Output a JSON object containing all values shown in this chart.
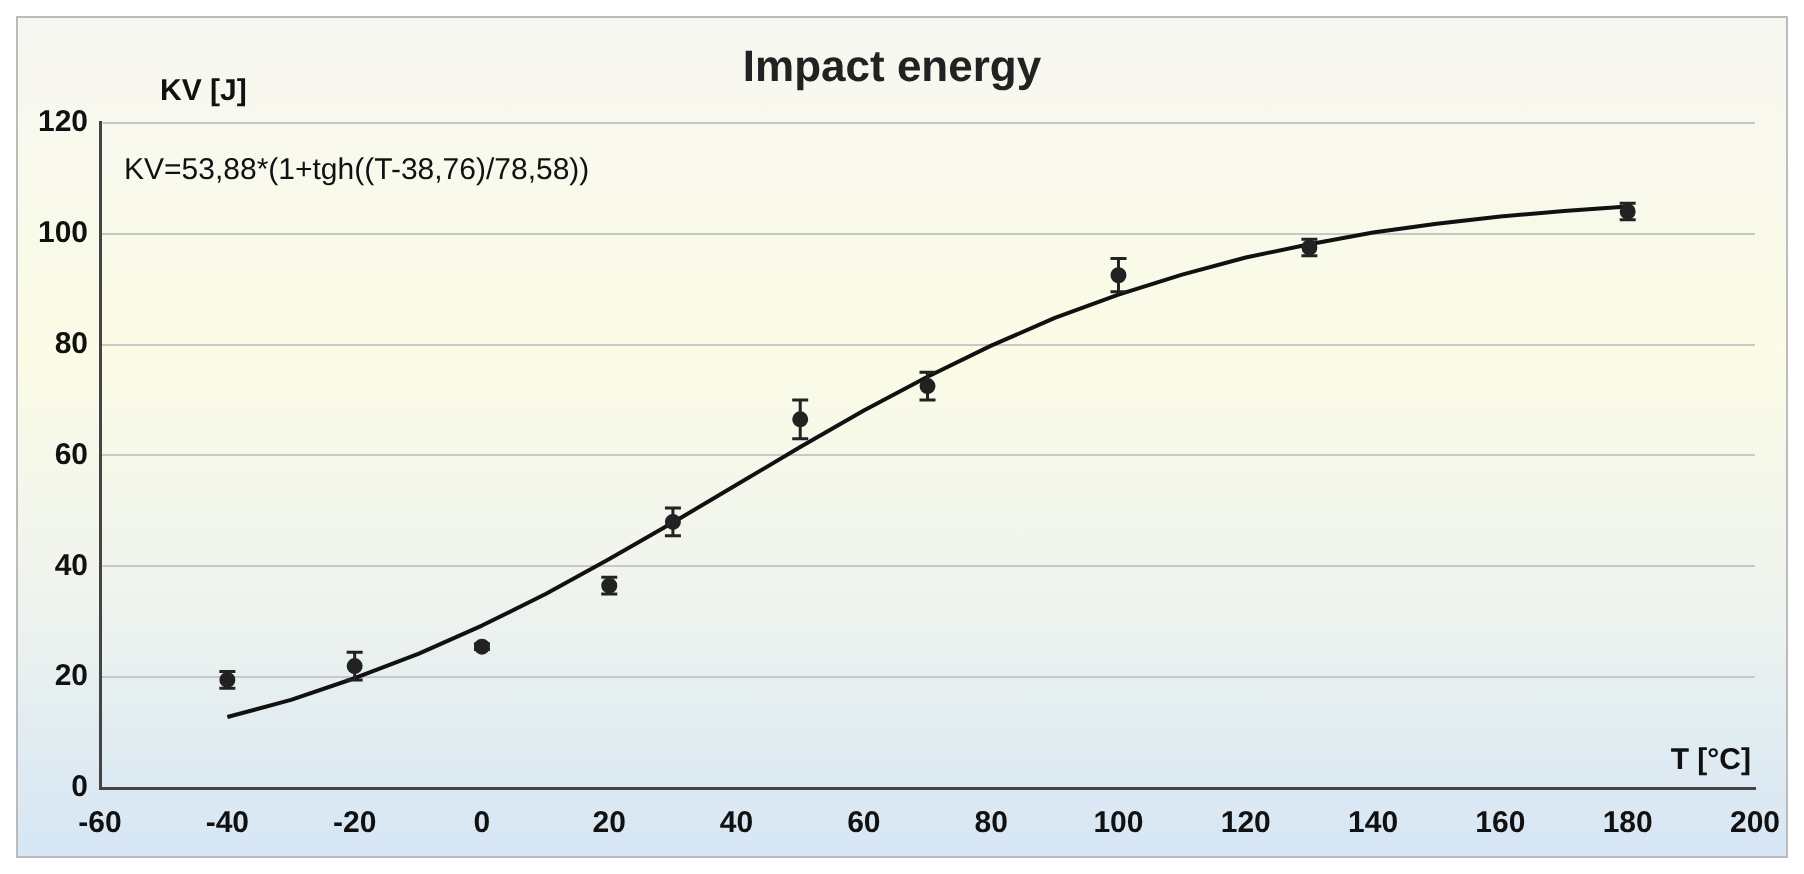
{
  "chart_data": {
    "type": "scatter",
    "title": "Impact energy",
    "xlabel": "T [°C]",
    "ylabel": "KV [J]",
    "annotations": [
      "KV=53,88*(1+tgh((T-38,76)/78,58))"
    ],
    "xlim": [
      -60,
      200
    ],
    "ylim": [
      0,
      120
    ],
    "xticks": [
      -60,
      -40,
      -20,
      0,
      20,
      40,
      60,
      80,
      100,
      120,
      140,
      160,
      180,
      200
    ],
    "yticks": [
      0,
      20,
      40,
      60,
      80,
      100,
      120
    ],
    "grid": "y",
    "legend": false,
    "marker": "circle",
    "series": [
      {
        "type": "scatter",
        "color": "#222222",
        "x": [
          -40,
          -20,
          0,
          20,
          30,
          50,
          70,
          100,
          130,
          180
        ],
        "values": [
          19.5,
          22,
          25.5,
          36.5,
          48,
          66.5,
          72.5,
          92.5,
          97.5,
          104
        ],
        "errors": [
          1.5,
          2.5,
          0.5,
          1.5,
          2.5,
          3.5,
          2.5,
          3,
          1.5,
          1.5
        ]
      },
      {
        "type": "line",
        "color": "#111111",
        "marker": "none",
        "x": [
          -40,
          -30,
          -20,
          -10,
          0,
          10,
          20,
          30,
          40,
          50,
          60,
          70,
          80,
          90,
          100,
          110,
          120,
          130,
          140,
          150,
          160,
          170,
          180
        ],
        "values": [
          12.8,
          15.9,
          19.8,
          24.2,
          29.3,
          35,
          41.3,
          47.9,
          54.7,
          61.5,
          68.1,
          74.2,
          79.8,
          84.8,
          89,
          92.6,
          95.7,
          98.1,
          100.2,
          101.8,
          103.1,
          104.1,
          104.9
        ]
      }
    ]
  }
}
